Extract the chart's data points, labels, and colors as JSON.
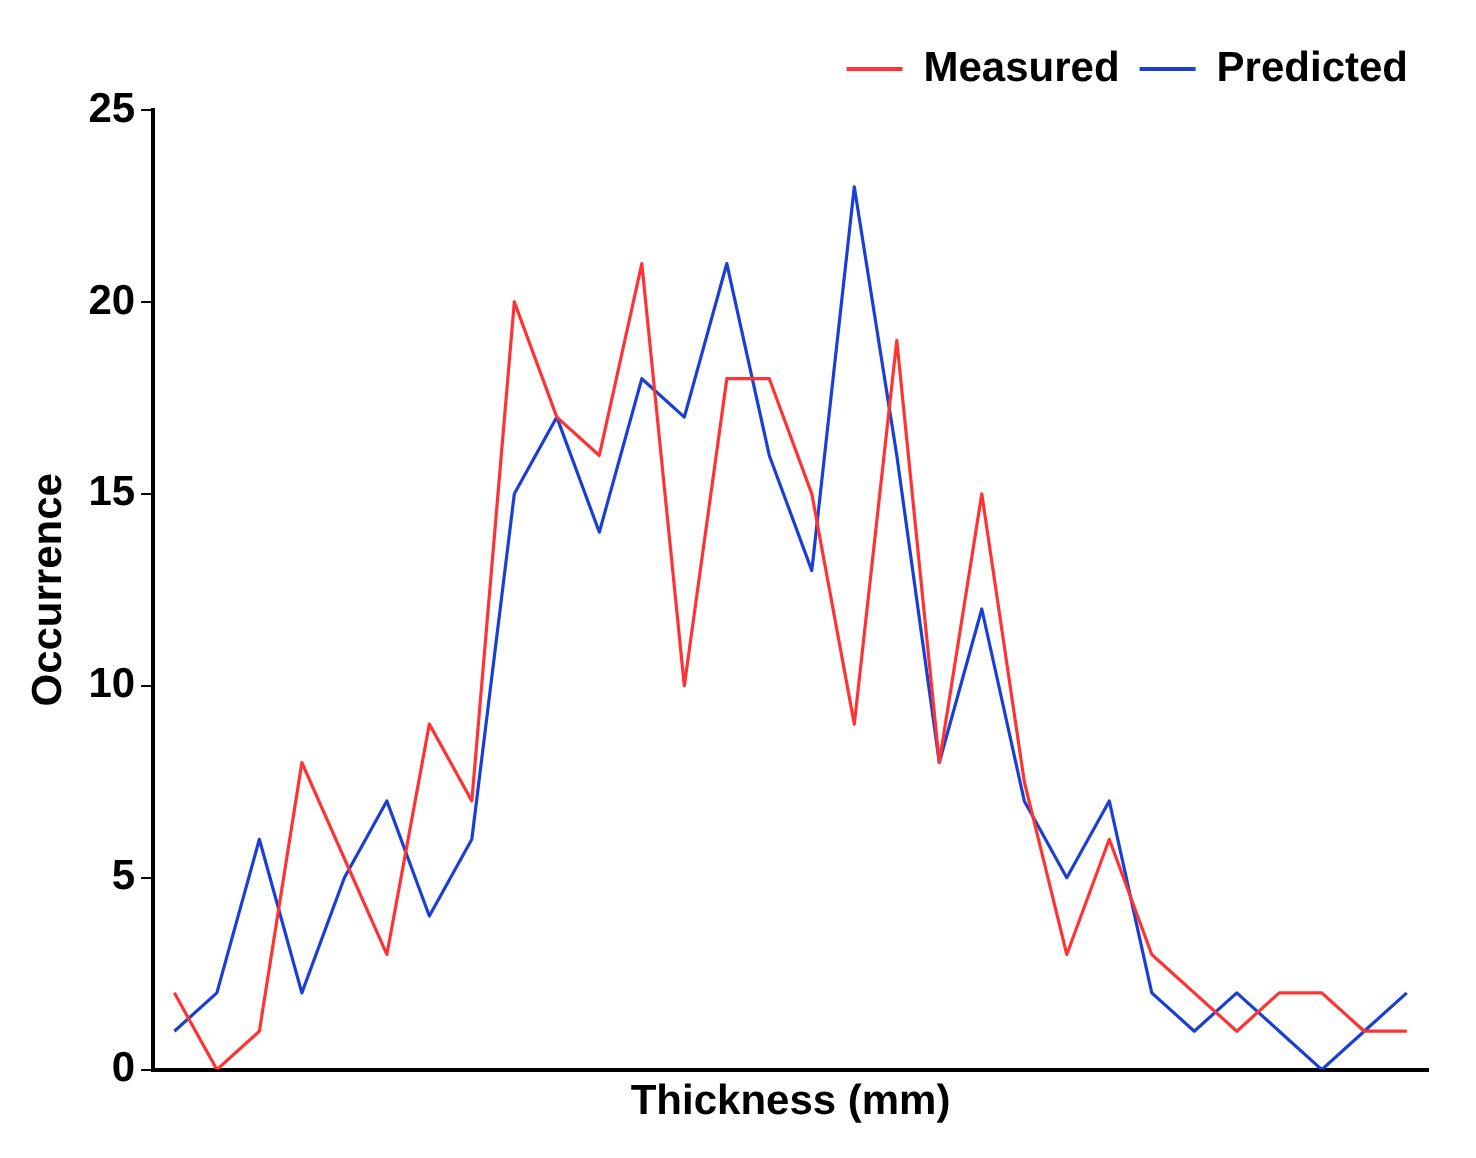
{
  "chart_data": {
    "type": "line",
    "xlabel": "Thickness (mm)",
    "ylabel": "Occurrence",
    "categories": [
      null,
      null,
      null,
      null,
      null,
      null,
      null,
      null,
      null,
      null,
      null,
      null,
      null,
      null,
      null,
      null,
      null,
      null,
      null,
      null,
      null,
      null,
      null,
      null,
      null,
      null,
      null,
      null,
      null,
      null
    ],
    "series": [
      {
        "name": "Measured",
        "color": "#ff3333",
        "values": [
          2,
          0,
          1,
          8,
          5.5,
          3,
          9,
          7,
          20,
          17,
          16,
          21,
          10,
          18,
          18,
          15,
          9,
          19,
          8,
          15,
          7.5,
          3,
          6,
          3,
          2,
          1,
          2,
          2,
          1,
          1
        ]
      },
      {
        "name": "Predicted",
        "color": "#1a3fd6",
        "values": [
          1,
          2,
          6,
          2,
          5,
          7,
          4,
          6,
          15,
          17,
          14,
          18,
          17,
          21,
          16,
          13,
          23,
          16,
          8,
          12,
          7,
          5,
          7,
          2,
          1,
          2,
          1,
          0,
          1,
          2
        ]
      }
    ],
    "ylim": [
      0,
      25
    ],
    "yticks": [
      0,
      5,
      10,
      15,
      20,
      25
    ],
    "grid": false,
    "legend": "top right",
    "marker": "none",
    "line_style": "solid",
    "tick_labels": "y"
  }
}
